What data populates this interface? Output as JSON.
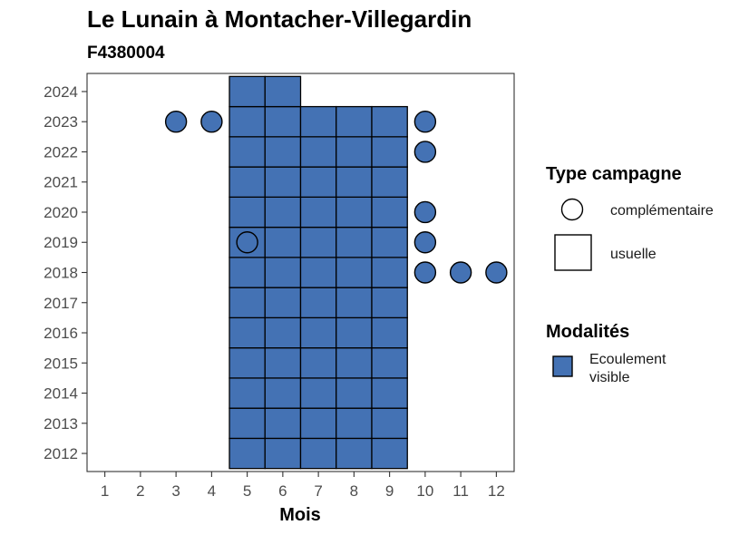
{
  "chart_data": {
    "type": "heatmap",
    "title": "Le Lunain à Montacher-Villegardin",
    "subtitle": "F4380004",
    "xlabel": "Mois",
    "ylabel": "",
    "x_ticks": [
      1,
      2,
      3,
      4,
      5,
      6,
      7,
      8,
      9,
      10,
      11,
      12
    ],
    "y_ticks": [
      2012,
      2013,
      2014,
      2015,
      2016,
      2017,
      2018,
      2019,
      2020,
      2021,
      2022,
      2023,
      2024
    ],
    "xlim": [
      0.5,
      12.5
    ],
    "ylim": [
      2011.4,
      2024.6
    ],
    "grid": false,
    "legend_position": "right",
    "fill_color": "#4472b4",
    "usuelle": [
      {
        "month": 5,
        "years": [
          2012,
          2013,
          2014,
          2015,
          2016,
          2017,
          2018,
          2019,
          2020,
          2021,
          2022,
          2023,
          2024
        ]
      },
      {
        "month": 6,
        "years": [
          2012,
          2013,
          2014,
          2015,
          2016,
          2017,
          2018,
          2019,
          2020,
          2021,
          2022,
          2023,
          2024
        ]
      },
      {
        "month": 7,
        "years": [
          2012,
          2013,
          2014,
          2015,
          2016,
          2017,
          2018,
          2019,
          2020,
          2021,
          2022,
          2023
        ]
      },
      {
        "month": 8,
        "years": [
          2012,
          2013,
          2014,
          2015,
          2016,
          2017,
          2018,
          2019,
          2020,
          2021,
          2022,
          2023
        ]
      },
      {
        "month": 9,
        "years": [
          2012,
          2013,
          2014,
          2015,
          2016,
          2017,
          2018,
          2019,
          2020,
          2021,
          2022,
          2023
        ]
      }
    ],
    "complementaire": [
      {
        "month": 3,
        "year": 2023,
        "filled": true
      },
      {
        "month": 4,
        "year": 2023,
        "filled": true
      },
      {
        "month": 5,
        "year": 2019,
        "filled": false
      },
      {
        "month": 10,
        "year": 2023,
        "filled": true
      },
      {
        "month": 10,
        "year": 2022,
        "filled": true
      },
      {
        "month": 10,
        "year": 2020,
        "filled": true
      },
      {
        "month": 10,
        "year": 2019,
        "filled": true
      },
      {
        "month": 10,
        "year": 2018,
        "filled": true
      },
      {
        "month": 11,
        "year": 2018,
        "filled": true
      },
      {
        "month": 12,
        "year": 2018,
        "filled": true
      }
    ],
    "legend": {
      "type_title": "Type campagne",
      "type_items": [
        {
          "shape": "circle",
          "label": "complémentaire"
        },
        {
          "shape": "square",
          "label": "usuelle"
        }
      ],
      "modalites_title": "Modalités",
      "modalites_items": [
        {
          "label_lines": [
            "Ecoulement",
            "visible"
          ],
          "color": "#4472b4"
        }
      ]
    }
  }
}
